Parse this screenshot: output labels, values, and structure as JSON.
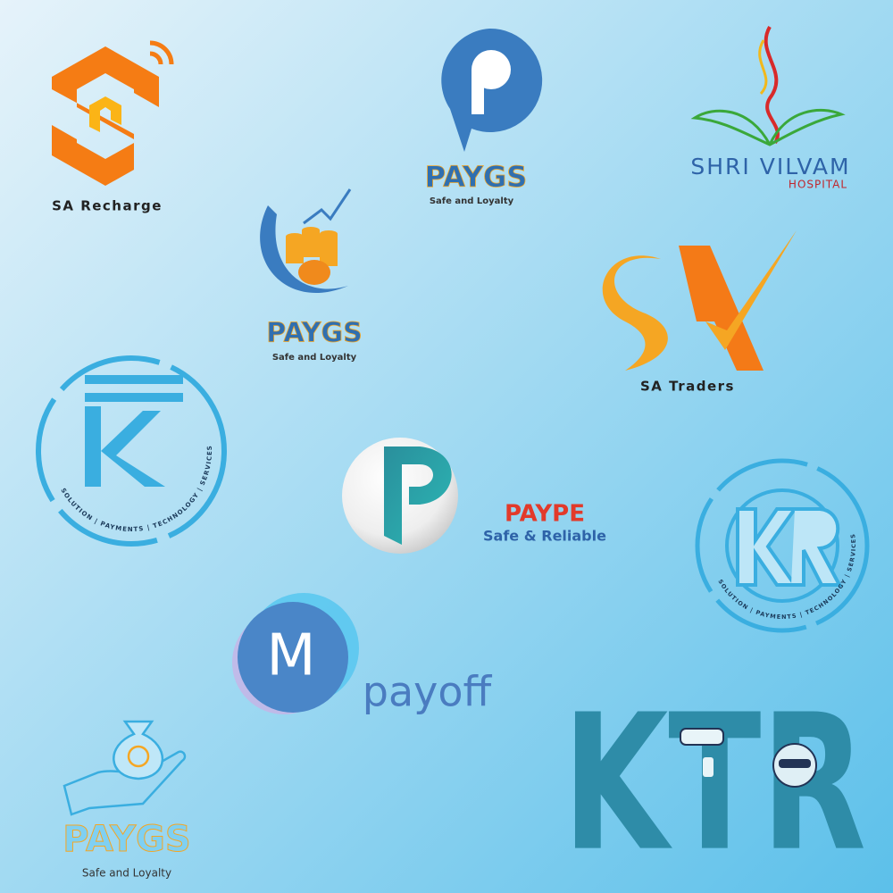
{
  "logos": {
    "sa_recharge": {
      "name": "SA Recharge"
    },
    "paygs_top": {
      "brand": "PAYGS",
      "tagline": "Safe and Loyalty"
    },
    "shri_vilvam": {
      "line1": "SHRI VILVAM",
      "line2": "HOSPITAL"
    },
    "paygs_middle": {
      "brand": "PAYGS",
      "tagline": "Safe and Loyalty"
    },
    "sa_traders": {
      "name": "SA Traders"
    },
    "rupee_ring": {
      "ring_text": "SOLUTION | PAYMENTS | TECHNOLOGY | SERVICES"
    },
    "paype": {
      "brand": "PAYPE",
      "tagline": "Safe & Reliable"
    },
    "ktr_ring": {
      "ring_text": "SOLUTION | PAYMENTS | TECHNOLOGY | SERVICES"
    },
    "payoff": {
      "initial": "M",
      "brand": "payoff"
    },
    "paygs_bottom": {
      "brand": "PAYGS",
      "tagline": "Safe and Loyalty"
    },
    "ktr": {
      "brand": "KTR"
    }
  }
}
